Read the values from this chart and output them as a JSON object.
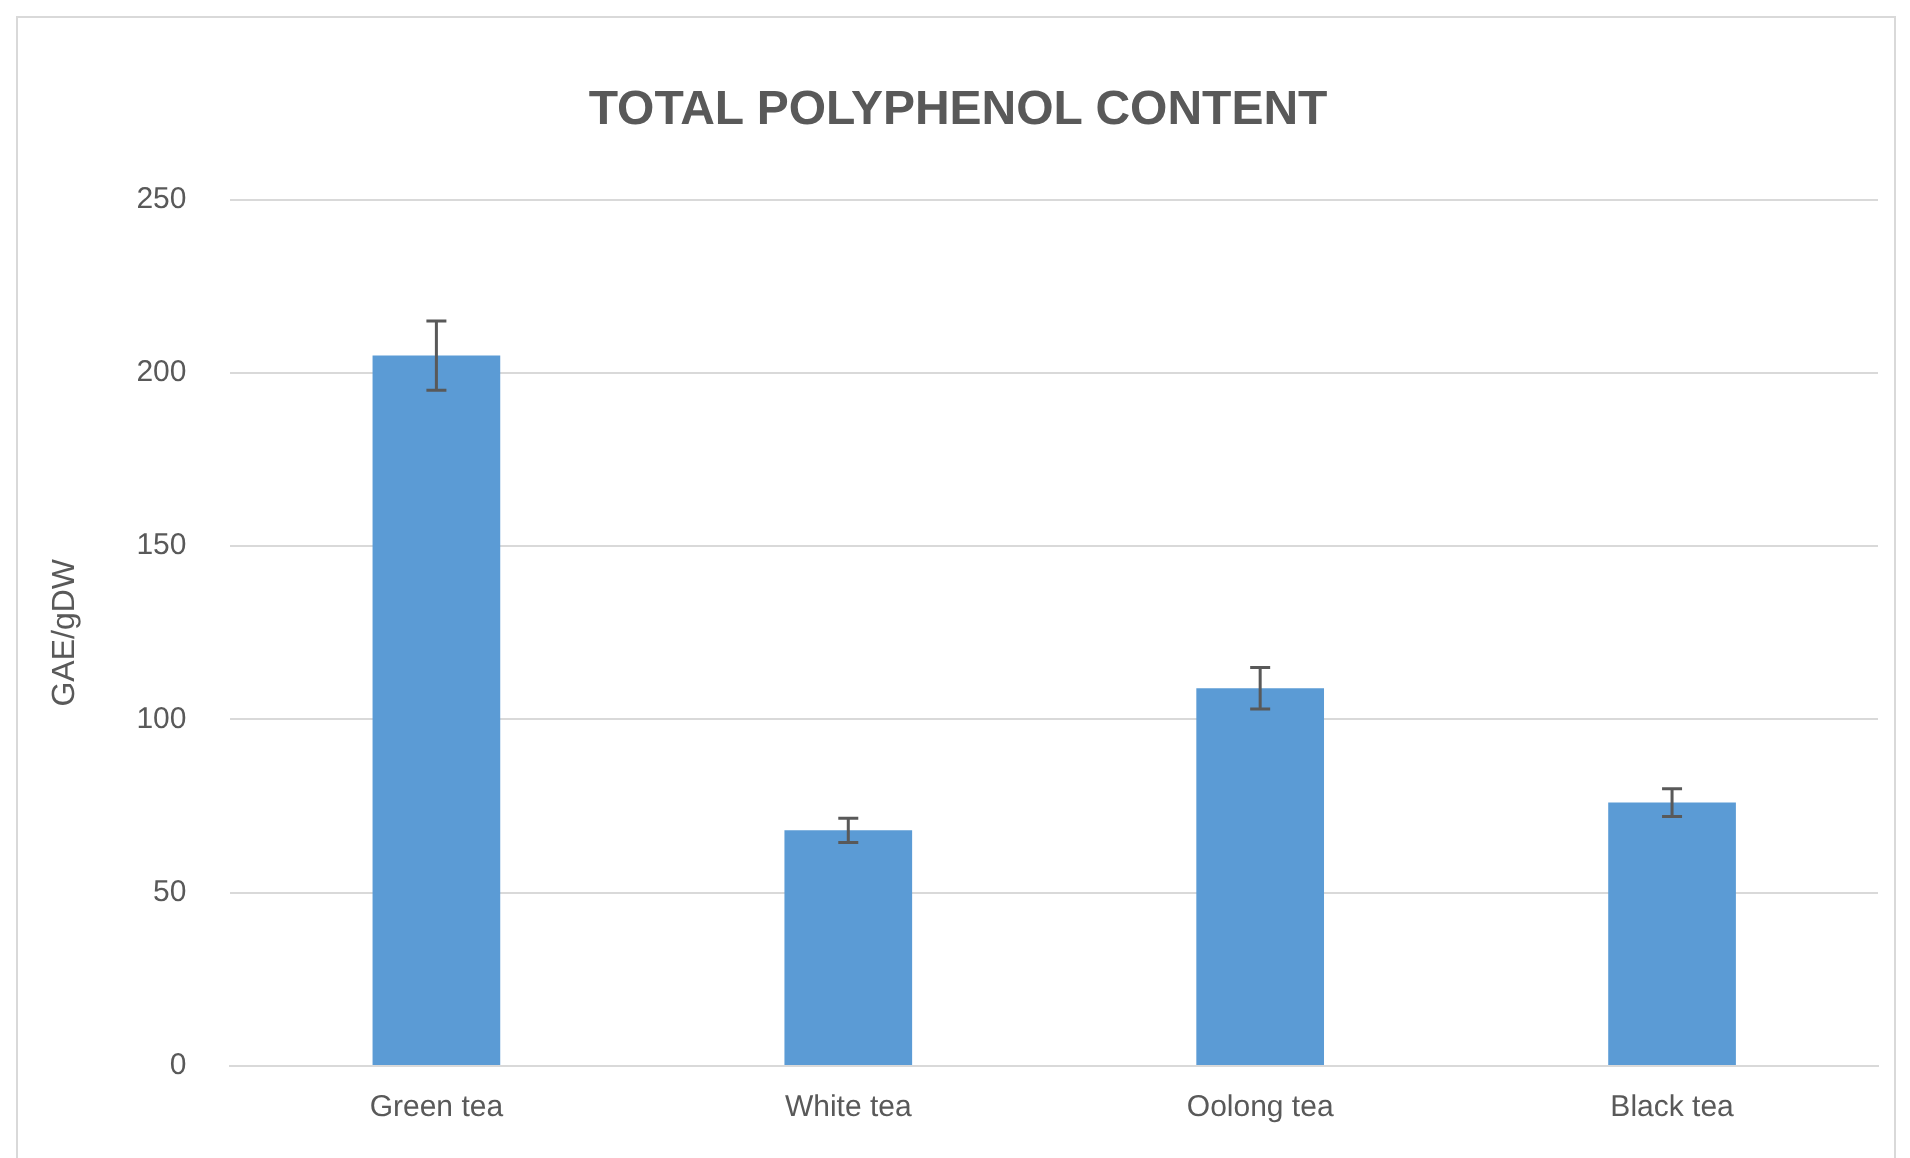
{
  "chart_data": {
    "type": "bar",
    "title": "TOTAL POLYPHENOL CONTENT",
    "ylabel": "GAE/gDW",
    "categories": [
      "Green tea",
      "White tea",
      "Oolong tea",
      "Black tea"
    ],
    "values": [
      205,
      68,
      109,
      76
    ],
    "errors": [
      10,
      3.5,
      6,
      4
    ],
    "color": "#5b9bd5",
    "ylim": [
      0,
      250
    ],
    "yticks": [
      0,
      50,
      100,
      150,
      200,
      250
    ],
    "grid": "y",
    "legend": false
  }
}
